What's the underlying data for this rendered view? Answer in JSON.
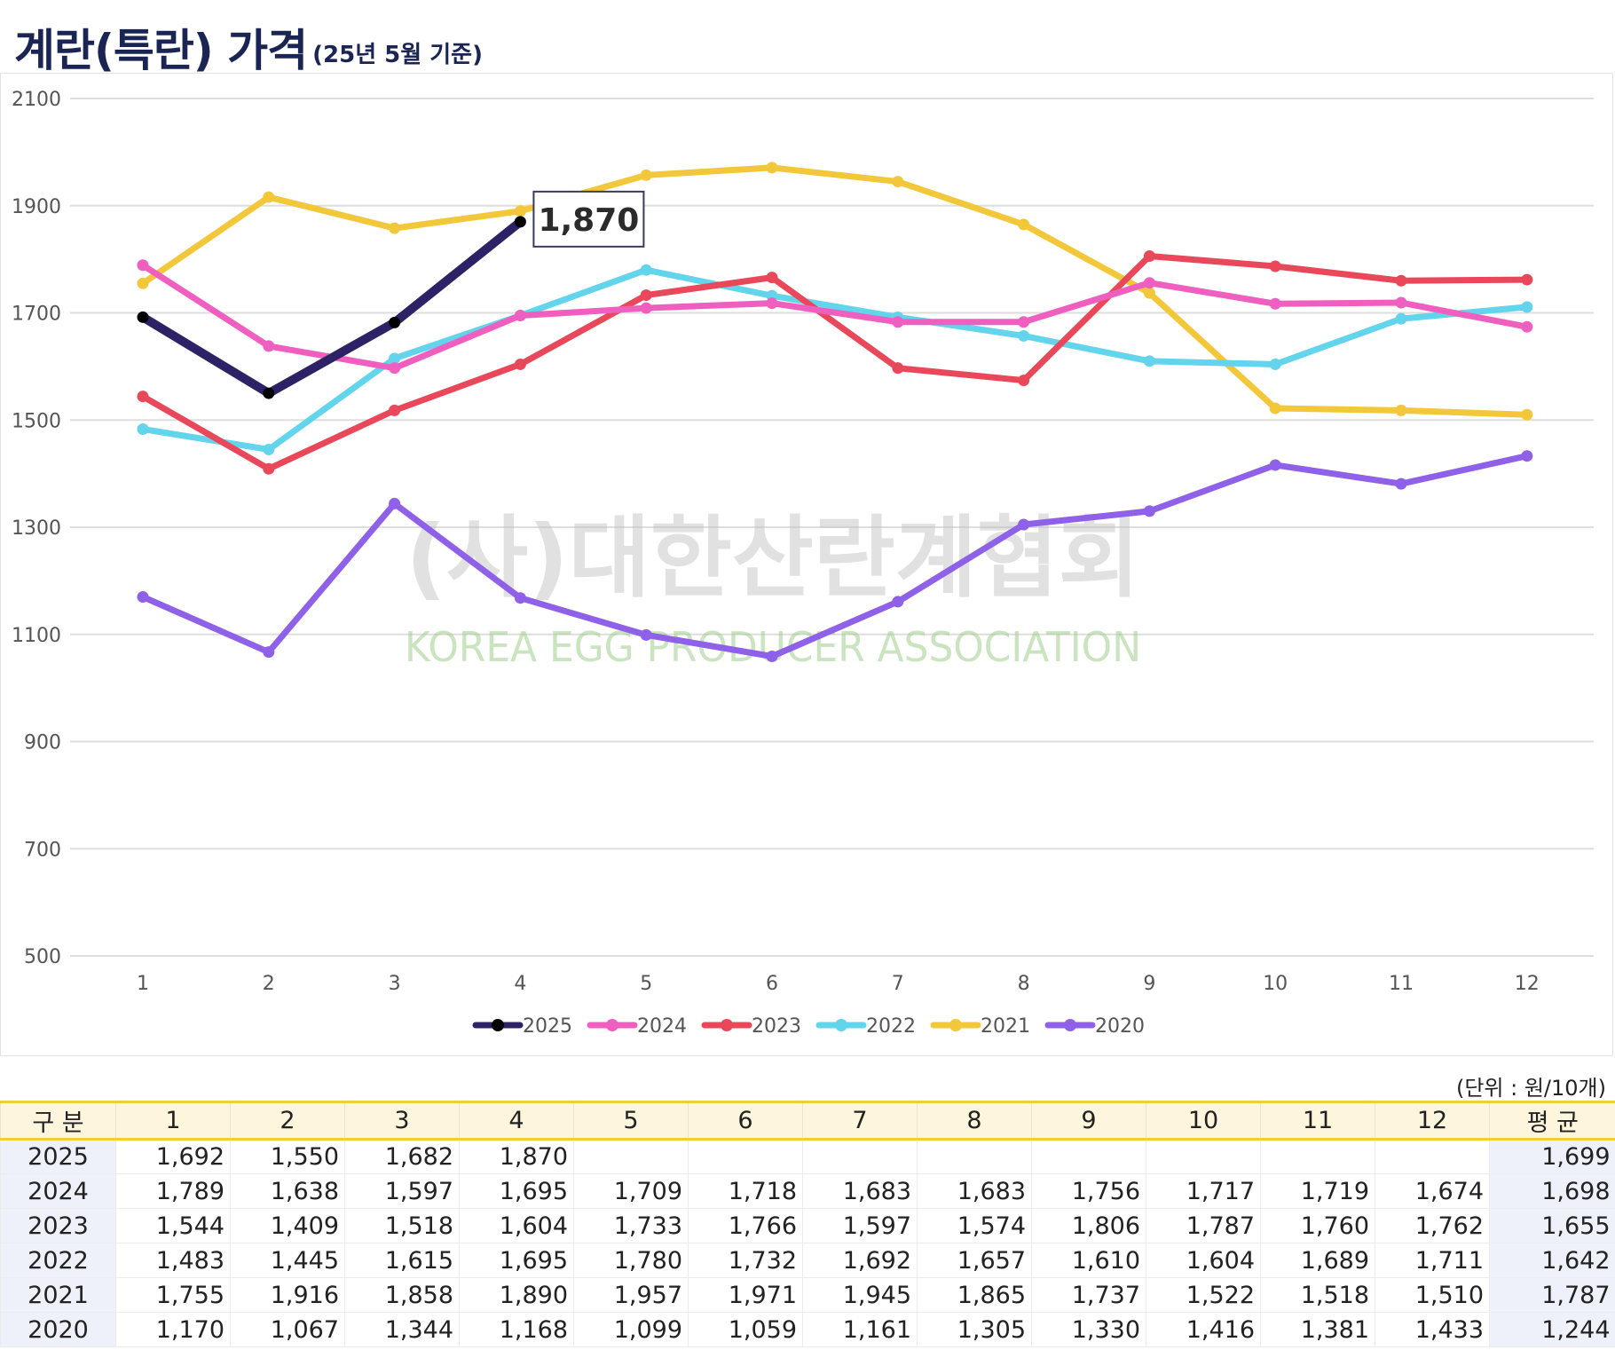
{
  "page": {
    "title_main": "계란(특란) 가격",
    "title_sub": "(25년 5월 기준)",
    "unit": "(단위 : 원/10개)"
  },
  "watermark": {
    "korean": "(사)대한산란계협회",
    "english": "KOREA EGG PRODUCER ASSOCIATION"
  },
  "chart_data": {
    "type": "line",
    "title": "계란(특란) 가격",
    "subtitle": "(25년 5월 기준)",
    "xlabel": "",
    "ylabel": "",
    "x": [
      1,
      2,
      3,
      4,
      5,
      6,
      7,
      8,
      9,
      10,
      11,
      12
    ],
    "ylim": [
      500,
      2100
    ],
    "yticks": [
      500,
      700,
      900,
      1100,
      1300,
      1500,
      1700,
      1900,
      2100
    ],
    "grid": true,
    "legend_position": "bottom",
    "series": [
      {
        "name": "2025",
        "color": "#2e2266",
        "values": [
          1692,
          1550,
          1682,
          1870,
          null,
          null,
          null,
          null,
          null,
          null,
          null,
          null
        ]
      },
      {
        "name": "2024",
        "color": "#ef5fbf",
        "values": [
          1789,
          1638,
          1597,
          1695,
          1709,
          1718,
          1683,
          1683,
          1756,
          1717,
          1719,
          1674
        ]
      },
      {
        "name": "2023",
        "color": "#e8485a",
        "values": [
          1544,
          1409,
          1518,
          1604,
          1733,
          1766,
          1597,
          1574,
          1806,
          1787,
          1760,
          1762
        ]
      },
      {
        "name": "2022",
        "color": "#62d4ec",
        "values": [
          1483,
          1445,
          1615,
          1695,
          1780,
          1732,
          1692,
          1657,
          1610,
          1604,
          1689,
          1711
        ]
      },
      {
        "name": "2021",
        "color": "#f2c83a",
        "values": [
          1755,
          1916,
          1858,
          1890,
          1957,
          1971,
          1945,
          1865,
          1737,
          1522,
          1518,
          1510
        ]
      },
      {
        "name": "2020",
        "color": "#8e61e8",
        "values": [
          1170,
          1067,
          1344,
          1168,
          1099,
          1059,
          1161,
          1305,
          1330,
          1416,
          1381,
          1433
        ]
      }
    ],
    "annotations": [
      {
        "series": "2025",
        "x": 4,
        "text": "1,870"
      }
    ]
  },
  "table": {
    "headers": [
      "구 분",
      "1",
      "2",
      "3",
      "4",
      "5",
      "6",
      "7",
      "8",
      "9",
      "10",
      "11",
      "12",
      "평 균"
    ],
    "rows": [
      [
        "2025",
        "1,692",
        "1,550",
        "1,682",
        "1,870",
        "",
        "",
        "",
        "",
        "",
        "",
        "",
        "",
        "1,699"
      ],
      [
        "2024",
        "1,789",
        "1,638",
        "1,597",
        "1,695",
        "1,709",
        "1,718",
        "1,683",
        "1,683",
        "1,756",
        "1,717",
        "1,719",
        "1,674",
        "1,698"
      ],
      [
        "2023",
        "1,544",
        "1,409",
        "1,518",
        "1,604",
        "1,733",
        "1,766",
        "1,597",
        "1,574",
        "1,806",
        "1,787",
        "1,760",
        "1,762",
        "1,655"
      ],
      [
        "2022",
        "1,483",
        "1,445",
        "1,615",
        "1,695",
        "1,780",
        "1,732",
        "1,692",
        "1,657",
        "1,610",
        "1,604",
        "1,689",
        "1,711",
        "1,642"
      ],
      [
        "2021",
        "1,755",
        "1,916",
        "1,858",
        "1,890",
        "1,957",
        "1,971",
        "1,945",
        "1,865",
        "1,737",
        "1,522",
        "1,518",
        "1,510",
        "1,787"
      ],
      [
        "2020",
        "1,170",
        "1,067",
        "1,344",
        "1,168",
        "1,099",
        "1,059",
        "1,161",
        "1,305",
        "1,330",
        "1,416",
        "1,381",
        "1,433",
        "1,244"
      ]
    ]
  }
}
